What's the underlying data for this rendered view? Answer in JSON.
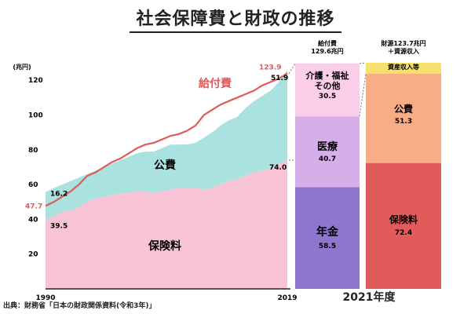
{
  "title": "社会保障費と財政の推移",
  "source": "出典：財務省「日本の財政関係資料(令和3年)」",
  "fiscal_year_label": "2021年度",
  "chart_data": [
    {
      "type": "area",
      "unit_label": "(兆円)",
      "x_ticks": [
        "1990",
        "2019"
      ],
      "x": [
        1990,
        1991,
        1992,
        1993,
        1994,
        1995,
        1996,
        1997,
        1998,
        1999,
        2000,
        2001,
        2002,
        2003,
        2004,
        2005,
        2006,
        2007,
        2008,
        2009,
        2010,
        2011,
        2012,
        2013,
        2014,
        2015,
        2016,
        2017,
        2018,
        2019
      ],
      "xlim": [
        1990,
        2019
      ],
      "ylim": [
        0,
        130
      ],
      "y_ticks": [
        20,
        40,
        60,
        80,
        100,
        120
      ],
      "series": [
        {
          "name": "保険料",
          "color": "#f9c3d6",
          "values": [
            39.5,
            42,
            44,
            45,
            47,
            50,
            52,
            53,
            54,
            55,
            55,
            56,
            56,
            55,
            56,
            57,
            58,
            58,
            58,
            57,
            58,
            60,
            62,
            63,
            65,
            67,
            68,
            69,
            72,
            74.0
          ]
        },
        {
          "name": "公費",
          "color": "#a9e2df",
          "values": [
            16.2,
            16,
            16,
            17,
            17,
            16,
            16,
            17,
            18,
            19,
            21,
            22,
            23,
            24,
            25,
            26,
            25,
            25,
            26,
            30,
            32,
            34,
            35,
            36,
            39,
            41,
            43,
            45,
            47,
            51.9
          ]
        },
        {
          "name": "給付費",
          "color": "#e05a5a",
          "values": [
            47.7,
            50,
            53,
            56,
            60,
            65,
            67,
            70,
            73,
            75,
            78,
            81,
            83,
            84,
            86,
            88,
            89,
            91,
            94,
            100,
            103,
            106,
            108,
            110,
            112,
            114,
            117,
            119,
            121,
            123.9
          ]
        }
      ],
      "labels": {
        "hoken_start": "39.5",
        "kohi_start": "16.2",
        "kyufu_start": "47.7",
        "hoken_end": "74.0",
        "kohi_end": "51.9",
        "kyufu_end": "123.9",
        "hoken_area": "保険料",
        "kohi_area": "公費",
        "kyufu_series": "給付費"
      }
    },
    {
      "type": "bar",
      "title": "給付費\n129.6兆円",
      "total": 129.6,
      "segments": [
        {
          "name": "年金",
          "value": 58.5,
          "color": "#8e76cf"
        },
        {
          "name": "医療",
          "value": 40.7,
          "color": "#d7afe8"
        },
        {
          "name": "介護・福祉\nその他",
          "value": 30.5,
          "color": "#fbcde8"
        }
      ]
    },
    {
      "type": "bar",
      "title": "財源123.7兆円\n＋資源収入",
      "total": 130.0,
      "segments": [
        {
          "name": "保険料",
          "value": 72.4,
          "color": "#e25b5b"
        },
        {
          "name": "公費",
          "value": 51.3,
          "color": "#f7ad85"
        },
        {
          "name": "資産収入等",
          "value": null,
          "color": "#f7e06b"
        }
      ]
    }
  ]
}
